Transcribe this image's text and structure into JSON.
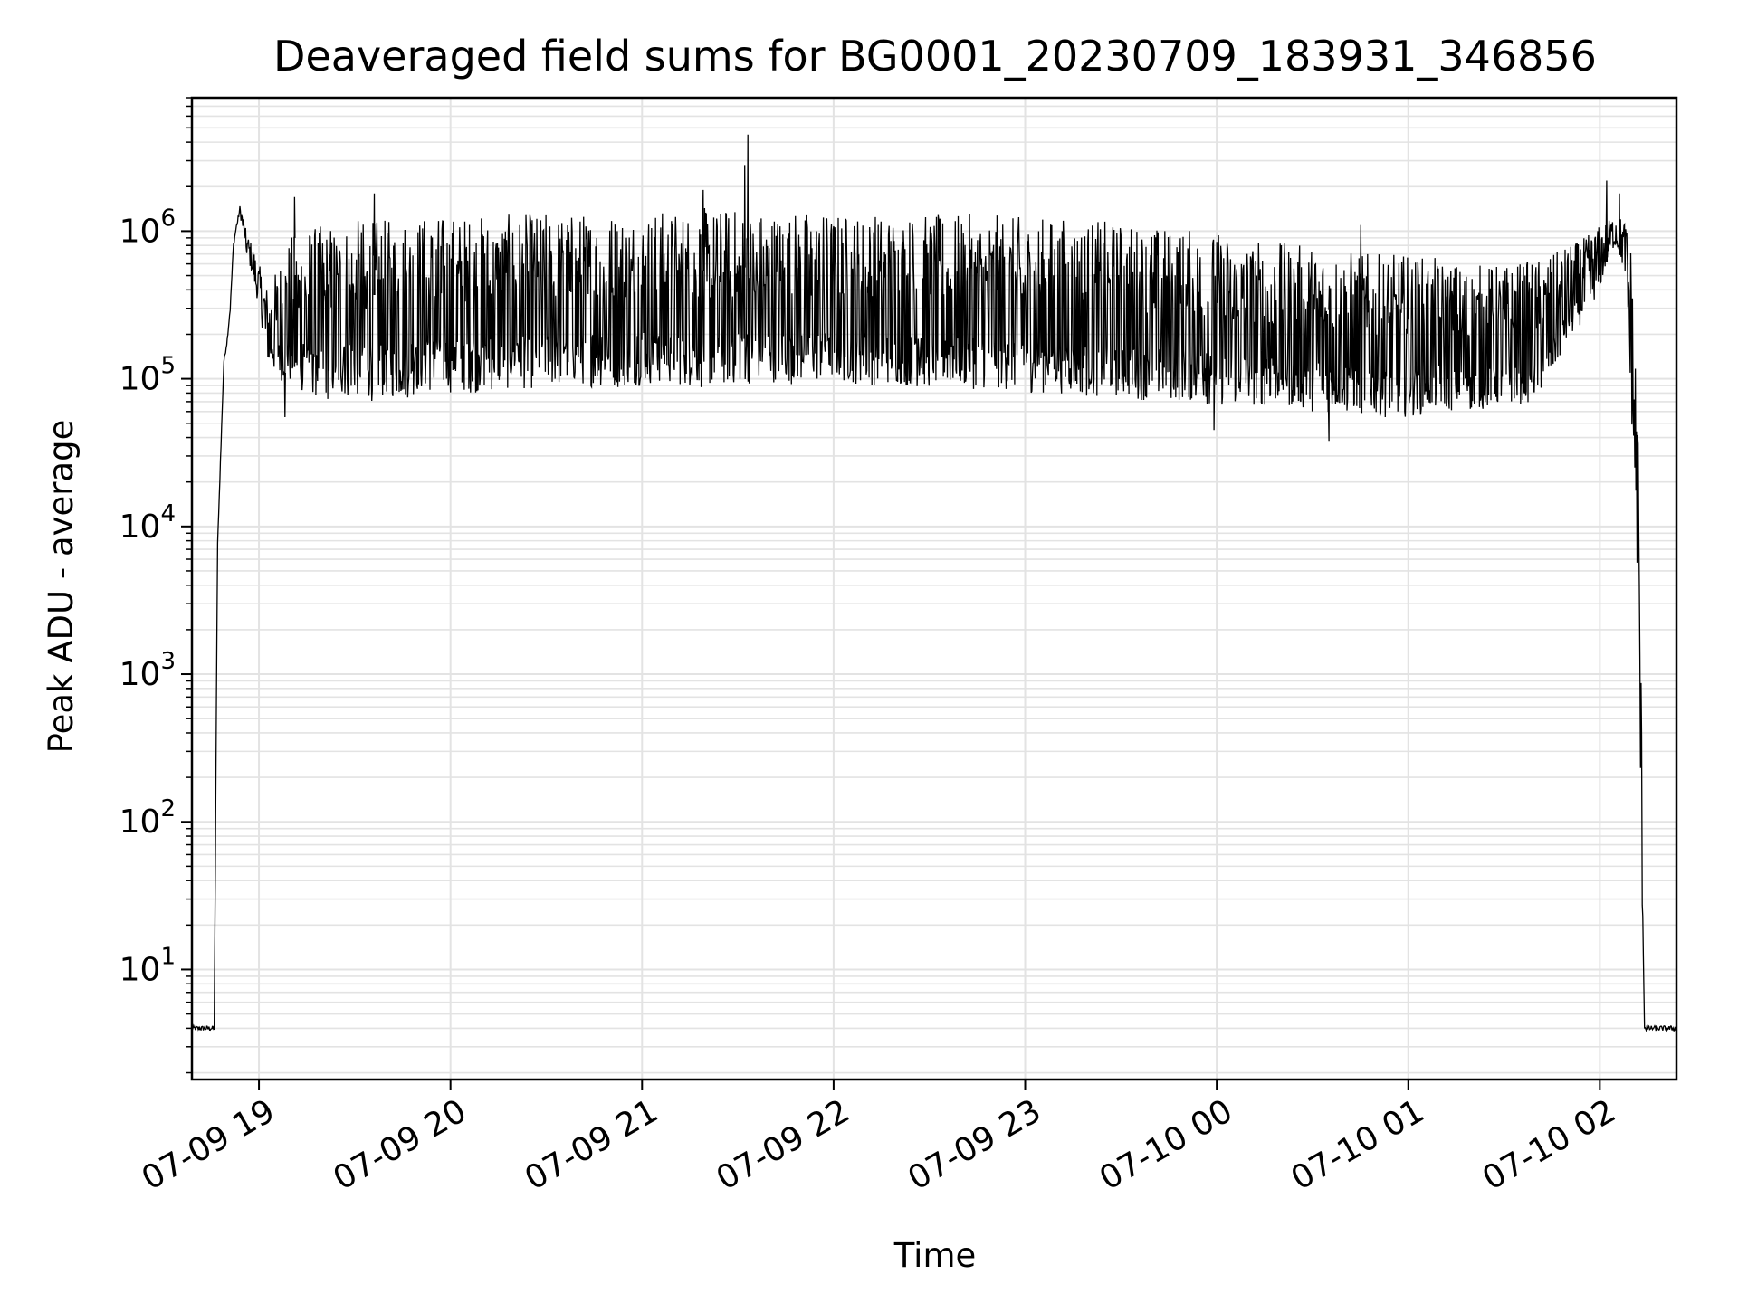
{
  "chart_data": {
    "type": "line",
    "title": "Deaveraged field sums for BG0001_20230709_183931_346856",
    "xlabel": "Time",
    "ylabel": "Peak ADU - average",
    "x_scale": "time",
    "y_scale": "log",
    "xlim": [
      "2023-07-09 18:39",
      "2023-07-10 02:24"
    ],
    "ylim": [
      1.8,
      8000000
    ],
    "grid": true,
    "legend": "none",
    "x_ticks": [
      "07-09 19",
      "07-09 20",
      "07-09 21",
      "07-09 22",
      "07-09 23",
      "07-10 00",
      "07-10 01",
      "07-10 02"
    ],
    "y_ticks": [
      {
        "value": 10,
        "base": "10",
        "exp": "1"
      },
      {
        "value": 100,
        "base": "10",
        "exp": "2"
      },
      {
        "value": 1000,
        "base": "10",
        "exp": "3"
      },
      {
        "value": 10000,
        "base": "10",
        "exp": "4"
      },
      {
        "value": 100000,
        "base": "10",
        "exp": "5"
      },
      {
        "value": 1000000,
        "base": "10",
        "exp": "6"
      }
    ],
    "colors": {
      "line": "#000000",
      "grid": "#e3e3e3",
      "axes": "#000000",
      "background": "#ffffff"
    },
    "series": [
      {
        "x": [
          "2023-07-09 18:40",
          "2023-07-09 18:42",
          "2023-07-09 18:44",
          "2023-07-09 18:46",
          "2023-07-09 18:47",
          "2023-07-09 18:48",
          "2023-07-09 18:49",
          "2023-07-09 18:50",
          "2023-07-09 18:51",
          "2023-07-09 18:52",
          "2023-07-09 18:53",
          "2023-07-09 18:54",
          "2023-07-09 18:55",
          "2023-07-09 18:56",
          "2023-07-09 18:58",
          "2023-07-09 19:00",
          "2023-07-09 19:03",
          "2023-07-09 19:06",
          "2023-07-09 19:09",
          "2023-07-09 19:12",
          "2023-07-09 19:15",
          "2023-07-09 19:20",
          "2023-07-09 19:25",
          "2023-07-09 19:30",
          "2023-07-09 19:35",
          "2023-07-09 19:40",
          "2023-07-09 19:45",
          "2023-07-09 19:50",
          "2023-07-09 19:55",
          "2023-07-09 20:00",
          "2023-07-09 20:10",
          "2023-07-09 20:20",
          "2023-07-09 20:30",
          "2023-07-09 20:40",
          "2023-07-09 20:50",
          "2023-07-09 21:00",
          "2023-07-09 21:10",
          "2023-07-09 21:20",
          "2023-07-09 21:30",
          "2023-07-09 21:40",
          "2023-07-09 21:50",
          "2023-07-09 22:00",
          "2023-07-09 22:10",
          "2023-07-09 22:20",
          "2023-07-09 22:30",
          "2023-07-09 22:40",
          "2023-07-09 22:50",
          "2023-07-09 23:00",
          "2023-07-09 23:10",
          "2023-07-09 23:20",
          "2023-07-09 23:30",
          "2023-07-09 23:40",
          "2023-07-09 23:50",
          "2023-07-10 00:00",
          "2023-07-10 00:10",
          "2023-07-10 00:20",
          "2023-07-10 00:30",
          "2023-07-10 00:40",
          "2023-07-10 00:50",
          "2023-07-10 01:00",
          "2023-07-10 01:10",
          "2023-07-10 01:20",
          "2023-07-10 01:30",
          "2023-07-10 01:40",
          "2023-07-10 01:45",
          "2023-07-10 01:50",
          "2023-07-10 01:55",
          "2023-07-10 02:00",
          "2023-07-10 02:03",
          "2023-07-10 02:05",
          "2023-07-10 02:08",
          "2023-07-10 02:10",
          "2023-07-10 02:12",
          "2023-07-10 02:13",
          "2023-07-10 02:14",
          "2023-07-10 02:15",
          "2023-07-10 02:18",
          "2023-07-10 02:23"
        ],
        "y_low": [
          4,
          4,
          4,
          4,
          7000,
          30000,
          130000,
          180000,
          300000,
          800000,
          1100000,
          1300000,
          1000000,
          700000,
          500000,
          300000,
          120000,
          100000,
          90000,
          80000,
          80000,
          70000,
          70000,
          75000,
          70000,
          75000,
          70000,
          80000,
          80000,
          80000,
          80000,
          85000,
          85000,
          90000,
          85000,
          90000,
          90000,
          85000,
          90000,
          95000,
          90000,
          95000,
          90000,
          90000,
          85000,
          85000,
          85000,
          80000,
          80000,
          75000,
          75000,
          70000,
          70000,
          65000,
          65000,
          65000,
          60000,
          58000,
          55000,
          55000,
          60000,
          60000,
          65000,
          70000,
          100000,
          180000,
          250000,
          400000,
          700000,
          800000,
          500000,
          50000,
          3000,
          50,
          4,
          4,
          4,
          4
        ],
        "y_high": [
          4,
          4,
          4,
          4,
          7000,
          30000,
          130000,
          180000,
          300000,
          800000,
          1100000,
          1500000,
          1300000,
          1000000,
          800000,
          600000,
          400000,
          600000,
          900000,
          1000000,
          1100000,
          1100000,
          1200000,
          1200000,
          1200000,
          1200000,
          1300000,
          1300000,
          1300000,
          1300000,
          1300000,
          1300000,
          1350000,
          1350000,
          1400000,
          1400000,
          1400000,
          1450000,
          1450000,
          1400000,
          1400000,
          1350000,
          1350000,
          1350000,
          1300000,
          1300000,
          1300000,
          1250000,
          1250000,
          1200000,
          1150000,
          1100000,
          1050000,
          1000000,
          900000,
          850000,
          800000,
          750000,
          700000,
          700000,
          650000,
          600000,
          600000,
          650000,
          700000,
          800000,
          900000,
          1100000,
          1200000,
          1300000,
          1200000,
          800000,
          60000,
          800,
          4,
          4,
          4,
          4
        ]
      }
    ],
    "spikes": [
      {
        "x": "2023-07-09 21:33",
        "y": 4500000
      },
      {
        "x": "2023-07-09 21:32",
        "y": 2800000
      },
      {
        "x": "2023-07-09 21:19",
        "y": 1900000
      },
      {
        "x": "2023-07-09 19:11",
        "y": 1700000
      },
      {
        "x": "2023-07-09 19:36",
        "y": 1800000
      },
      {
        "x": "2023-07-10 02:02",
        "y": 2200000
      },
      {
        "x": "2023-07-10 02:06",
        "y": 1800000
      },
      {
        "x": "2023-07-10 00:45",
        "y": 1100000
      },
      {
        "x": "2023-07-10 00:35",
        "y": 38000
      },
      {
        "x": "2023-07-09 19:08",
        "y": 55000
      },
      {
        "x": "2023-07-09 23:59",
        "y": 45000
      }
    ]
  }
}
